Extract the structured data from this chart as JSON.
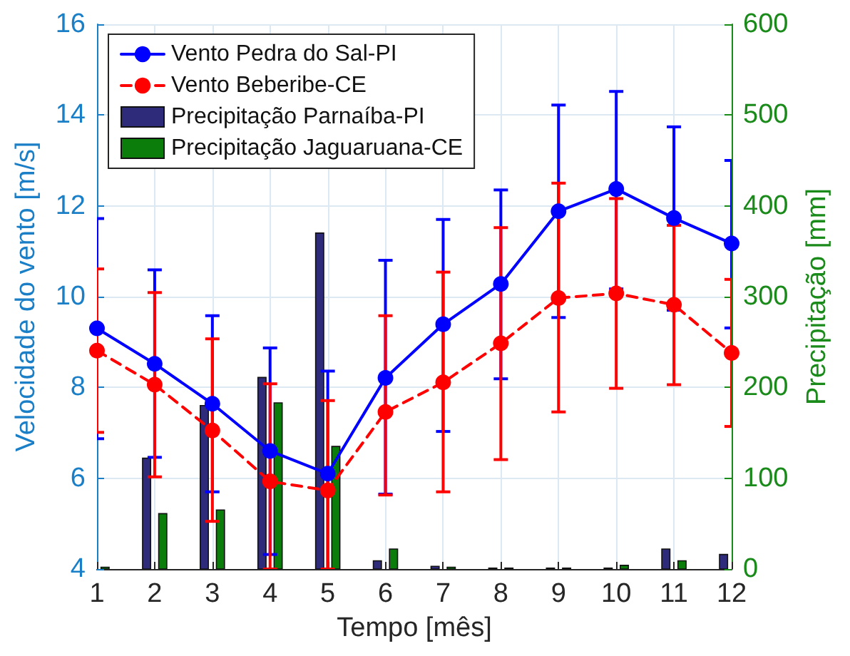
{
  "chart_data": {
    "type": "line",
    "xlabel": "Tempo [mês]",
    "ylabel": "Velocidade do vento [m/s]",
    "y2label": "Precipitação [mm]",
    "x": [
      1,
      2,
      3,
      4,
      5,
      6,
      7,
      8,
      9,
      10,
      11,
      12
    ],
    "xlim": [
      1,
      12
    ],
    "xticks": [
      1,
      2,
      3,
      4,
      5,
      6,
      7,
      8,
      9,
      10,
      11,
      12
    ],
    "ylim": [
      4,
      16
    ],
    "yticks": [
      4,
      6,
      8,
      10,
      12,
      14,
      16
    ],
    "y2lim": [
      0,
      600
    ],
    "y2ticks": [
      0,
      100,
      200,
      300,
      400,
      500,
      600
    ],
    "grid": true,
    "legend": "top left",
    "marker": "circle",
    "series": [
      {
        "name": "Vento Pedra do Sal-PI",
        "color": "#0000ff",
        "line_style": "solid",
        "values": [
          9.3,
          8.52,
          7.64,
          6.6,
          6.1,
          8.21,
          9.39,
          10.28,
          11.88,
          12.37,
          11.73,
          11.17
        ],
        "errors": [
          [
            6.87,
            11.72
          ],
          [
            6.46,
            10.59
          ],
          [
            5.7,
            9.58
          ],
          [
            4.32,
            8.87
          ],
          [
            4,
            8.36
          ],
          [
            5.65,
            10.8
          ],
          [
            7.03,
            11.7
          ],
          [
            8.19,
            12.35
          ],
          [
            9.54,
            14.22
          ],
          [
            10.17,
            14.52
          ],
          [
            9.7,
            13.74
          ],
          [
            9.31,
            13.0
          ]
        ]
      },
      {
        "name": "Vento Beberibe-CE",
        "color": "#ff0000",
        "line_style": "dashed",
        "values": [
          8.81,
          8.06,
          7.05,
          5.93,
          5.73,
          7.46,
          8.11,
          8.97,
          9.97,
          10.07,
          9.82,
          8.76
        ],
        "errors": [
          [
            7.01,
            10.61
          ],
          [
            6.03,
            10.09
          ],
          [
            5.05,
            9.07
          ],
          [
            4,
            8.08
          ],
          [
            4,
            7.71
          ],
          [
            5.63,
            9.58
          ],
          [
            5.7,
            10.54
          ],
          [
            6.41,
            11.52
          ],
          [
            7.46,
            12.5
          ],
          [
            7.98,
            12.16
          ],
          [
            8.06,
            11.57
          ],
          [
            7.14,
            10.38
          ]
        ]
      },
      {
        "name": "Precipitação Parnaíba-PI",
        "type": "bar",
        "axis": "y2",
        "color": "#2e2b7b",
        "values": [
          null,
          122,
          180,
          211,
          370,
          9,
          3,
          1,
          1,
          1,
          22,
          16
        ]
      },
      {
        "name": "Precipitação Jaguaruana-CE",
        "type": "bar",
        "axis": "y2",
        "color": "#0b7d0b",
        "values": [
          2,
          61,
          65,
          183,
          135,
          22,
          2,
          1,
          1,
          4,
          9,
          null
        ]
      }
    ]
  }
}
